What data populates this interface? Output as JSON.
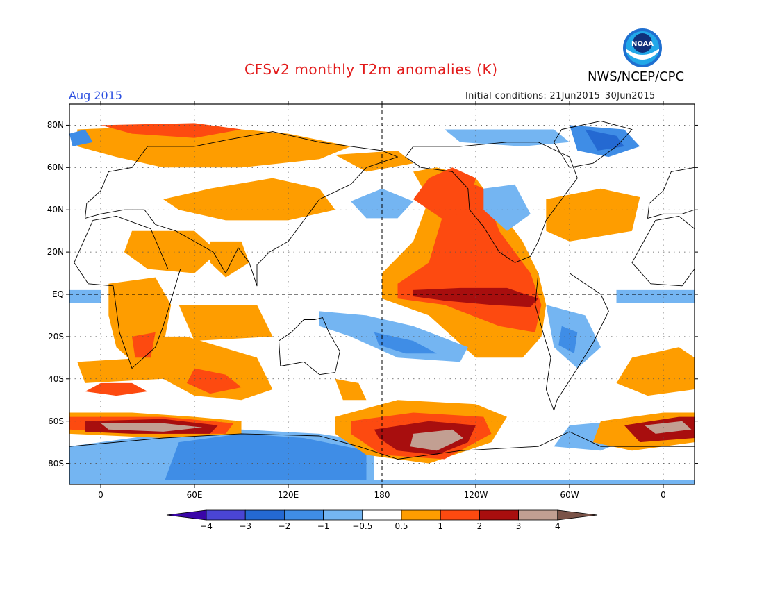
{
  "header": {
    "title": "CFSv2 monthly T2m anomalies (K)",
    "agency": "NWS/NCEP/CPC",
    "month": "Aug 2015",
    "initial_conditions": "Initial conditions: 21Jun2015–30Jun2015",
    "logo_text": "NOAA"
  },
  "map": {
    "projection": "cylindrical, centered 180",
    "lat_labels": [
      {
        "lat": 80,
        "label": "80N"
      },
      {
        "lat": 60,
        "label": "60N"
      },
      {
        "lat": 40,
        "label": "40N"
      },
      {
        "lat": 20,
        "label": "20N"
      },
      {
        "lat": 0,
        "label": "EQ"
      },
      {
        "lat": -20,
        "label": "20S"
      },
      {
        "lat": -40,
        "label": "40S"
      },
      {
        "lat": -60,
        "label": "60S"
      },
      {
        "lat": -80,
        "label": "80S"
      }
    ],
    "lon_labels": [
      {
        "lon": 0,
        "label": "0"
      },
      {
        "lon": 60,
        "label": "60E"
      },
      {
        "lon": 120,
        "label": "120E"
      },
      {
        "lon": 180,
        "label": "180"
      },
      {
        "lon": 240,
        "label": "120W"
      },
      {
        "lon": 300,
        "label": "60W"
      },
      {
        "lon": 360,
        "label": "0"
      }
    ],
    "colors": {
      "lt_m4": "#3a06a8",
      "m4_m3": "#4a45d4",
      "m3_m2": "#2469d2",
      "m2_m1": "#3f8de6",
      "m1_m05": "#74b5f2",
      "neutral": "#ffffff",
      "p05_1": "#fe9d00",
      "p1_2": "#fd4a10",
      "p2_3": "#a80e0e",
      "p3_4": "#c29f92",
      "gt_4": "#7a5348"
    }
  },
  "colorbar": {
    "labels": [
      "-4",
      "-3",
      "-2",
      "-1",
      "-0.5",
      "0.5",
      "1",
      "2",
      "3",
      "4"
    ],
    "colors": [
      "#3a06a8",
      "#4a45d4",
      "#2469d2",
      "#3f8de6",
      "#74b5f2",
      "#ffffff",
      "#fe9d00",
      "#fd4a10",
      "#a80e0e",
      "#c29f92",
      "#7a5348"
    ]
  }
}
